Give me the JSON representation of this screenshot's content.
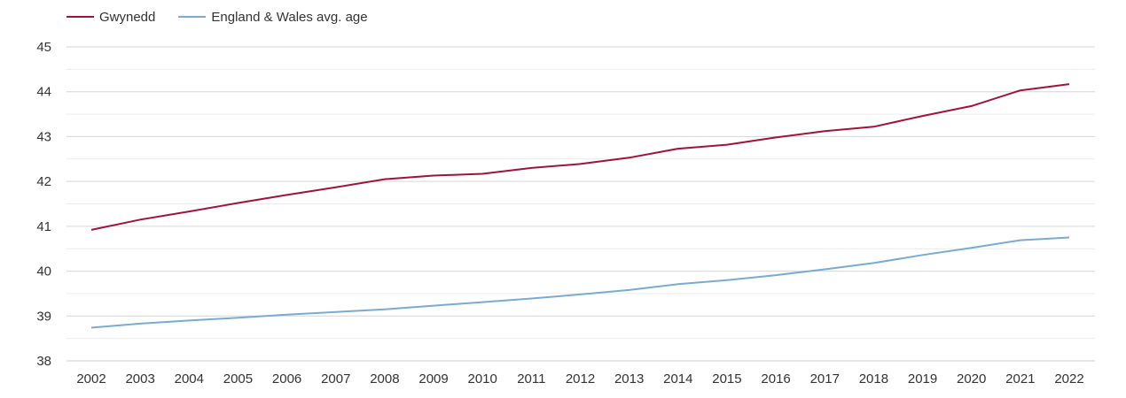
{
  "chart_data": {
    "type": "line",
    "title": "",
    "xlabel": "",
    "ylabel": "",
    "x": [
      "2002",
      "2003",
      "2004",
      "2005",
      "2006",
      "2007",
      "2008",
      "2009",
      "2010",
      "2011",
      "2012",
      "2013",
      "2014",
      "2015",
      "2016",
      "2017",
      "2018",
      "2019",
      "2020",
      "2021",
      "2022"
    ],
    "ylim": [
      38,
      45
    ],
    "yticks": [
      38,
      39,
      40,
      41,
      42,
      43,
      44,
      45
    ],
    "grid": true,
    "legend_position": "top-left",
    "series": [
      {
        "name": "Gwynedd",
        "color": "#a0133a",
        "values": [
          40.92,
          41.15,
          41.33,
          41.52,
          41.7,
          41.87,
          42.05,
          42.13,
          42.17,
          42.3,
          42.39,
          42.53,
          42.73,
          42.82,
          42.98,
          43.12,
          43.22,
          43.46,
          43.68,
          44.03,
          44.17
        ]
      },
      {
        "name": "England & Wales avg. age",
        "color": "#7aabd0",
        "values": [
          38.74,
          38.83,
          38.9,
          38.96,
          39.03,
          39.09,
          39.15,
          39.23,
          39.31,
          39.39,
          39.48,
          39.58,
          39.71,
          39.8,
          39.91,
          40.04,
          40.18,
          40.36,
          40.52,
          40.69,
          40.75
        ]
      }
    ]
  }
}
